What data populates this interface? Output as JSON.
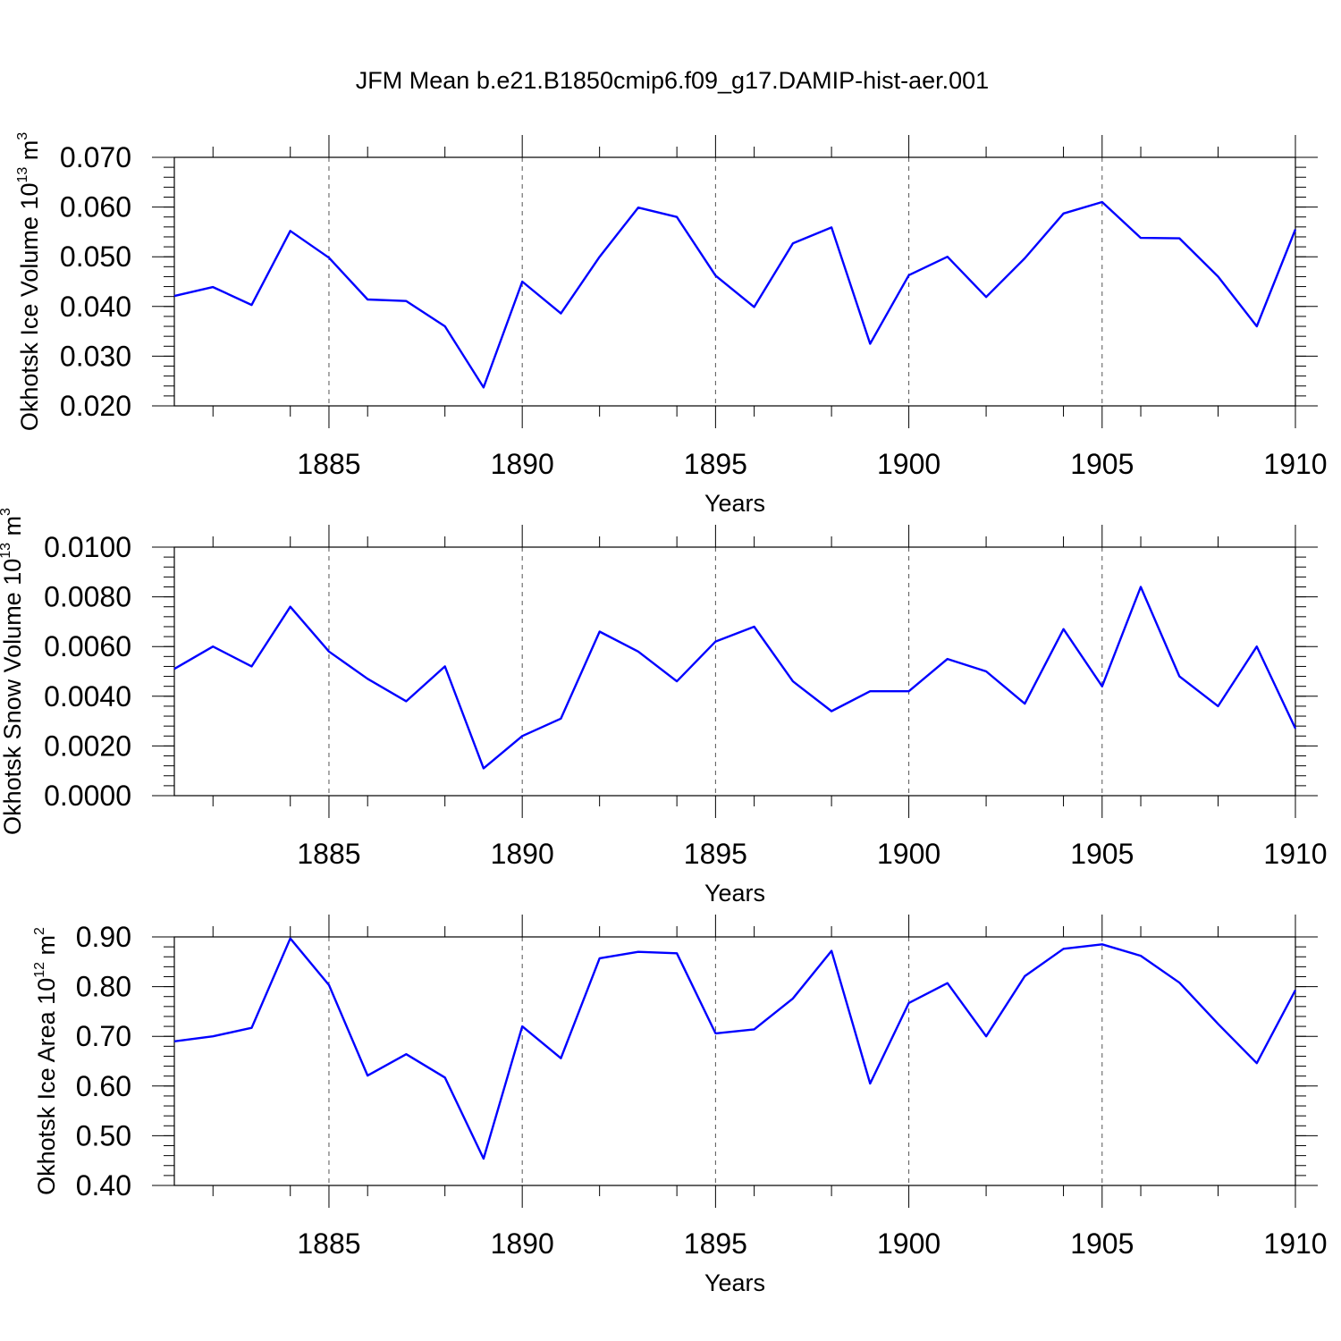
{
  "title": "JFM Mean b.e21.B1850cmip6.f09_g17.DAMIP-hist-aer.001",
  "colors": {
    "line": "#0000ff",
    "axis": "#000000",
    "grid": "#555555"
  },
  "chart_data": [
    {
      "type": "line",
      "ylabel": {
        "main": "Okhotsk Ice Volume 10",
        "exp": "13",
        "unit": " m",
        "unit_exp": "3"
      },
      "xlabel": "Years",
      "xlim": [
        1881,
        1910
      ],
      "ylim": [
        0.02,
        0.07
      ],
      "y_ticks": [
        0.02,
        0.03,
        0.04,
        0.05,
        0.06,
        0.07
      ],
      "y_tick_labels": [
        "0.020",
        "0.030",
        "0.040",
        "0.050",
        "0.060",
        "0.070"
      ],
      "y_minor_step": 0.002,
      "x_ticks": [
        1885,
        1890,
        1895,
        1900,
        1905,
        1910
      ],
      "x_tick_labels": [
        "1885",
        "1890",
        "1895",
        "1900",
        "1905",
        "1910"
      ],
      "x": [
        1881,
        1882,
        1883,
        1884,
        1885,
        1886,
        1887,
        1888,
        1889,
        1890,
        1891,
        1892,
        1893,
        1894,
        1895,
        1896,
        1897,
        1898,
        1899,
        1900,
        1901,
        1902,
        1903,
        1904,
        1905,
        1906,
        1907,
        1908,
        1909,
        1910
      ],
      "series": [
        {
          "name": "ice_volume",
          "values": [
            0.0421,
            0.0439,
            0.0403,
            0.0552,
            0.0498,
            0.0414,
            0.0411,
            0.036,
            0.0237,
            0.045,
            0.0386,
            0.05,
            0.0599,
            0.058,
            0.0462,
            0.0399,
            0.0527,
            0.0559,
            0.0325,
            0.0463,
            0.05,
            0.0419,
            0.0497,
            0.0587,
            0.061,
            0.0538,
            0.0537,
            0.046,
            0.036,
            0.0555
          ]
        }
      ]
    },
    {
      "type": "line",
      "ylabel": {
        "main": "Okhotsk Snow Volume 10",
        "exp": "13",
        "unit": " m",
        "unit_exp": "3"
      },
      "xlabel": "Years",
      "xlim": [
        1881,
        1910
      ],
      "ylim": [
        0.0,
        0.01
      ],
      "y_ticks": [
        0.0,
        0.002,
        0.004,
        0.006,
        0.008,
        0.01
      ],
      "y_tick_labels": [
        "0.0000",
        "0.0020",
        "0.0040",
        "0.0060",
        "0.0080",
        "0.0100"
      ],
      "y_minor_step": 0.0004,
      "x_ticks": [
        1885,
        1890,
        1895,
        1900,
        1905,
        1910
      ],
      "x_tick_labels": [
        "1885",
        "1890",
        "1895",
        "1900",
        "1905",
        "1910"
      ],
      "x": [
        1881,
        1882,
        1883,
        1884,
        1885,
        1886,
        1887,
        1888,
        1889,
        1890,
        1891,
        1892,
        1893,
        1894,
        1895,
        1896,
        1897,
        1898,
        1899,
        1900,
        1901,
        1902,
        1903,
        1904,
        1905,
        1906,
        1907,
        1908,
        1909,
        1910
      ],
      "series": [
        {
          "name": "snow_volume",
          "values": [
            0.0051,
            0.006,
            0.0052,
            0.0076,
            0.0058,
            0.0047,
            0.0038,
            0.0052,
            0.0011,
            0.0024,
            0.0031,
            0.0066,
            0.0058,
            0.0046,
            0.0062,
            0.0068,
            0.0046,
            0.0034,
            0.0042,
            0.0042,
            0.0055,
            0.005,
            0.0037,
            0.0067,
            0.0044,
            0.0084,
            0.0048,
            0.0036,
            0.006,
            0.0027
          ]
        }
      ]
    },
    {
      "type": "line",
      "ylabel": {
        "main": "Okhotsk Ice Area 10",
        "exp": "12",
        "unit": " m",
        "unit_exp": "2"
      },
      "xlabel": "Years",
      "xlim": [
        1881,
        1910
      ],
      "ylim": [
        0.4,
        0.9
      ],
      "y_ticks": [
        0.4,
        0.5,
        0.6,
        0.7,
        0.8,
        0.9
      ],
      "y_tick_labels": [
        "0.40",
        "0.50",
        "0.60",
        "0.70",
        "0.80",
        "0.90"
      ],
      "y_minor_step": 0.02,
      "x_ticks": [
        1885,
        1890,
        1895,
        1900,
        1905,
        1910
      ],
      "x_tick_labels": [
        "1885",
        "1890",
        "1895",
        "1900",
        "1905",
        "1910"
      ],
      "x": [
        1881,
        1882,
        1883,
        1884,
        1885,
        1886,
        1887,
        1888,
        1889,
        1890,
        1891,
        1892,
        1893,
        1894,
        1895,
        1896,
        1897,
        1898,
        1899,
        1900,
        1901,
        1902,
        1903,
        1904,
        1905,
        1906,
        1907,
        1908,
        1909,
        1910
      ],
      "series": [
        {
          "name": "ice_area",
          "values": [
            0.69,
            0.7,
            0.717,
            0.897,
            0.803,
            0.621,
            0.664,
            0.617,
            0.454,
            0.72,
            0.656,
            0.857,
            0.87,
            0.867,
            0.706,
            0.714,
            0.776,
            0.872,
            0.605,
            0.767,
            0.807,
            0.7,
            0.821,
            0.876,
            0.885,
            0.862,
            0.808,
            0.725,
            0.646,
            0.793
          ]
        }
      ]
    }
  ]
}
